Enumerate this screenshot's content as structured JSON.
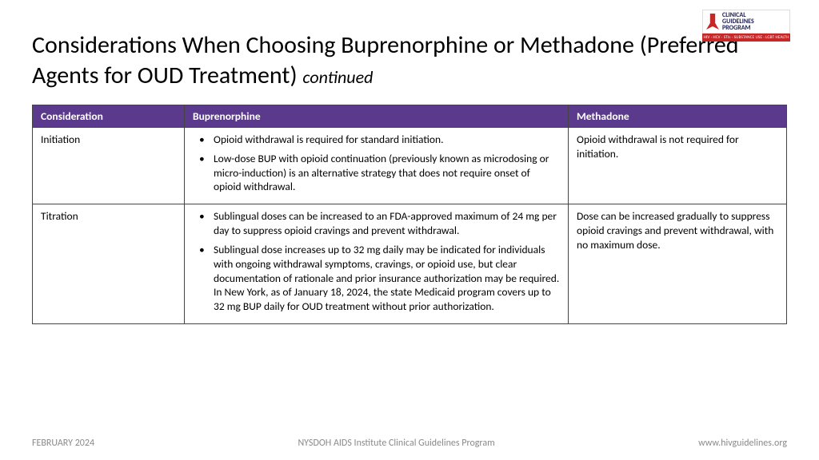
{
  "logo": {
    "line1": "CLINICAL",
    "line2": "GUIDELINES",
    "line3": "PROGRAM",
    "bar": "HIV · HCV · STIs · SUBSTANCE USE · LGBT HEALTH"
  },
  "title_main": "Considerations When Choosing Buprenorphine or Methadone (Preferred Agents for OUD Treatment)",
  "title_cont": "continued",
  "table": {
    "headers": [
      "Consideration",
      "Buprenorphine",
      "Methadone"
    ],
    "rows": [
      {
        "consideration": "Initiation",
        "bup": [
          "Opioid withdrawal is required for standard initiation.",
          "Low-dose BUP with opioid continuation (previously known as microdosing or micro-induction) is an alternative strategy that does not require onset of opioid withdrawal."
        ],
        "meth": "Opioid withdrawal is not required for initiation."
      },
      {
        "consideration": "Titration",
        "bup": [
          "Sublingual doses can be increased to an FDA-approved maximum of 24 mg per day to suppress opioid cravings and prevent withdrawal.",
          "Sublingual dose increases up to 32 mg daily may be indicated for individuals with ongoing withdrawal symptoms, cravings, or opioid use, but clear documentation of rationale and prior insurance authorization may be required. In New York, as of January 18, 2024, the state Medicaid program covers up to 32 mg BUP daily for OUD treatment without prior authorization."
        ],
        "meth": "Dose can be increased gradually to suppress opioid cravings and prevent withdrawal, with no maximum dose."
      }
    ]
  },
  "footer": {
    "left": "FEBRUARY 2024",
    "center": "NYSDOH AIDS Institute Clinical Guidelines Program",
    "right": "www.hivguidelines.org"
  }
}
